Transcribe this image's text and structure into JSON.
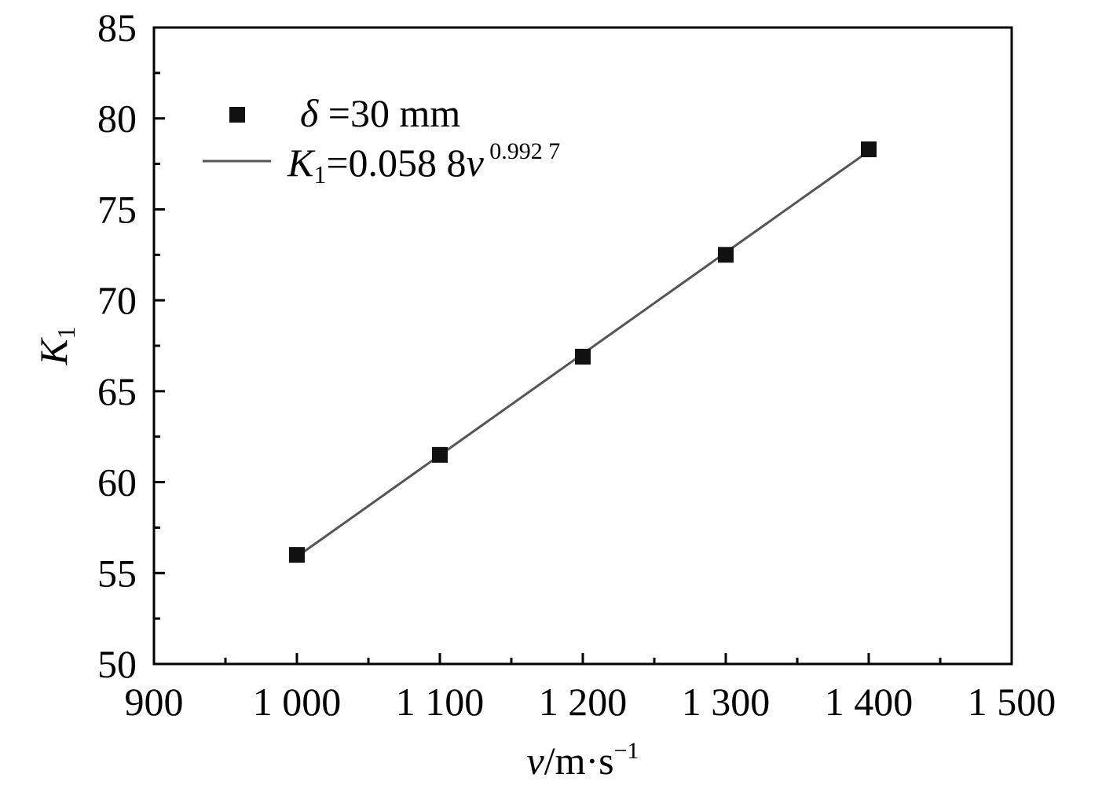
{
  "chart_data": {
    "type": "scatter",
    "title": "",
    "xlabel": {
      "var": "v",
      "units": "/m·s",
      "exp": "−1"
    },
    "ylabel": {
      "var": "K",
      "sub": "1"
    },
    "xlim": [
      900,
      1500
    ],
    "ylim": [
      50,
      85
    ],
    "x_major_ticks": [
      900,
      1000,
      1100,
      1200,
      1300,
      1400,
      1500
    ],
    "x_tick_labels": [
      "900",
      "1 000",
      "1 100",
      "1 200",
      "1 300",
      "1 400",
      "1 500"
    ],
    "x_minor_ticks": [
      950,
      1050,
      1150,
      1250,
      1350,
      1450
    ],
    "y_major_ticks": [
      50,
      55,
      60,
      65,
      70,
      75,
      80,
      85
    ],
    "y_tick_labels": [
      "50",
      "55",
      "60",
      "65",
      "70",
      "75",
      "80",
      "85"
    ],
    "y_minor_ticks": [
      52.5,
      57.5,
      62.5,
      67.5,
      72.5,
      77.5,
      82.5
    ],
    "grid": false,
    "legend_position": "top-left",
    "series": [
      {
        "name": "δ =30 mm",
        "kind": "scatter",
        "marker": "square",
        "color": "#111111",
        "x": [
          1000,
          1100,
          1200,
          1300,
          1400
        ],
        "y": [
          56.0,
          61.5,
          66.9,
          72.5,
          78.3
        ]
      },
      {
        "name": "K1=0.058 8v^0.992 7",
        "kind": "line",
        "color": "#555555",
        "fit": {
          "coef": 0.0588,
          "exp": 0.9927
        },
        "x_range": [
          1000,
          1400
        ]
      }
    ],
    "legend": {
      "scatter": {
        "symbol": "δ",
        "rest": " =30 mm"
      },
      "fit": {
        "var": "K",
        "sub": "1",
        "eq": "=0.058 8",
        "v": "v",
        "exp": " 0.992 7"
      }
    }
  }
}
